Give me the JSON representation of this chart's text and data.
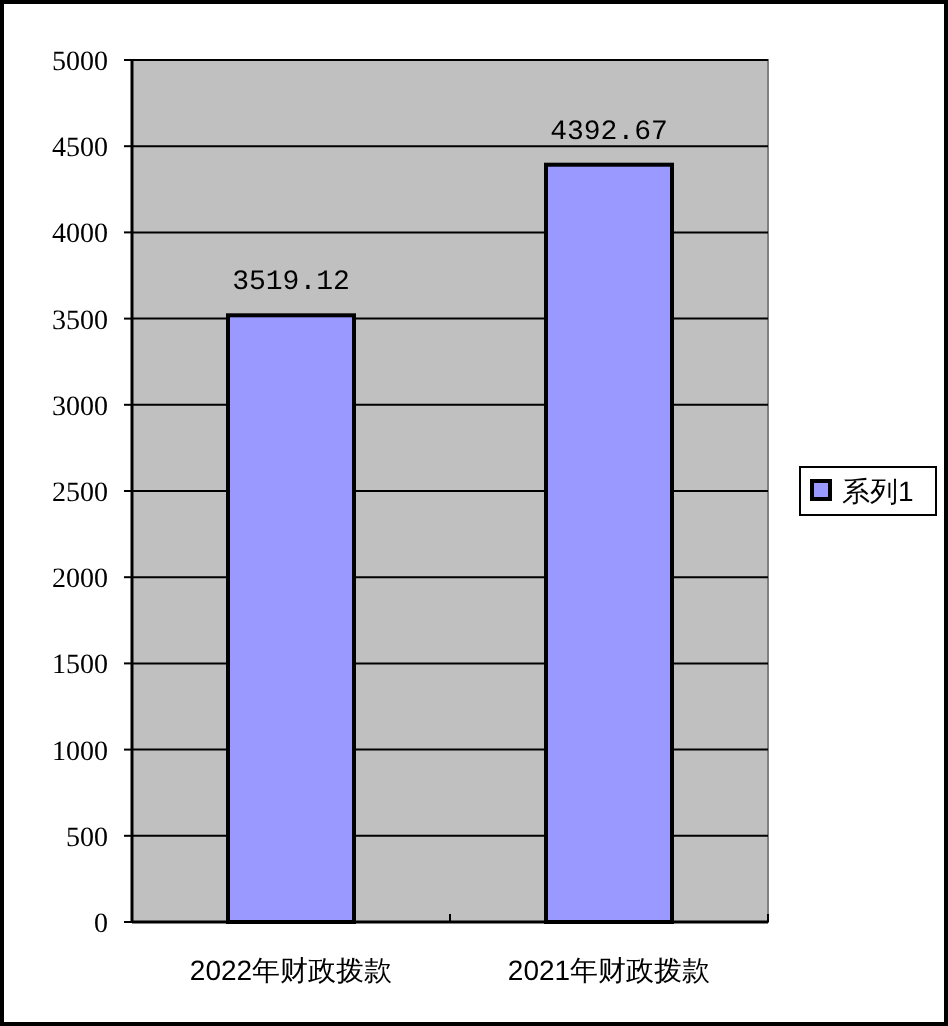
{
  "chart_data": {
    "type": "bar",
    "categories": [
      "2022年财政拨款",
      "2021年财政拨款"
    ],
    "series": [
      {
        "name": "系列1",
        "color": "#9999ff",
        "values": [
          3519.12,
          4392.67
        ]
      }
    ],
    "ylim": [
      0,
      5000
    ],
    "yticks": [
      0,
      500,
      1000,
      1500,
      2000,
      2500,
      3000,
      3500,
      4000,
      4500,
      5000
    ],
    "grid": "y",
    "legend": "right",
    "data_labels": true
  }
}
